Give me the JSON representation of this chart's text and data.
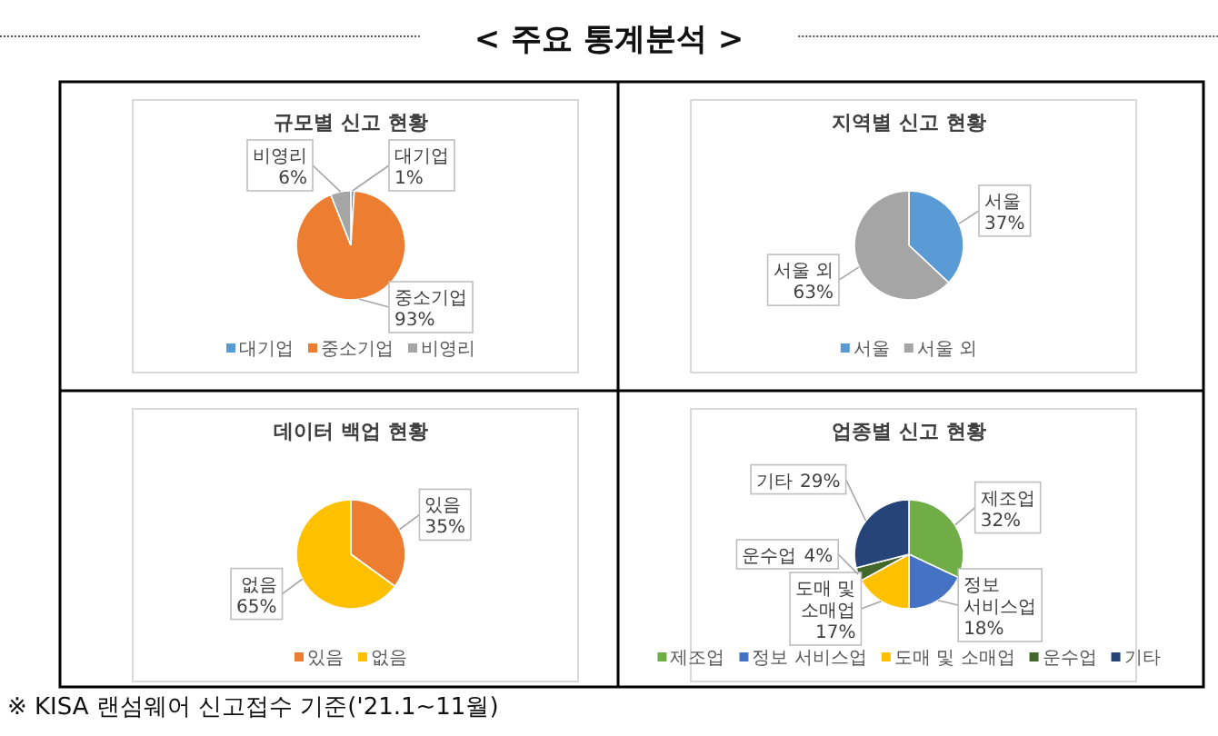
{
  "chart_data": [
    {
      "type": "other",
      "title": "< 주요 통계분석 >",
      "annotations": [
        "※ KISA 랜섬웨어 신고접수 기준('21.1~11월)"
      ]
    },
    {
      "type": "pie",
      "title": "규모별 신고 현황",
      "categories": [
        "대기업",
        "중소기업",
        "비영리"
      ],
      "values": [
        1,
        93,
        6
      ],
      "value_labels": [
        "1%",
        "93%",
        "6%"
      ],
      "colors": [
        "#5b9bd5",
        "#ed7d31",
        "#a5a5a5"
      ],
      "legend": "bottom"
    },
    {
      "type": "pie",
      "title": "지역별 신고 현황",
      "categories": [
        "서울",
        "서울 외"
      ],
      "values": [
        37,
        63
      ],
      "value_labels": [
        "37%",
        "63%"
      ],
      "colors": [
        "#5b9bd5",
        "#a5a5a5"
      ],
      "legend": "bottom"
    },
    {
      "type": "pie",
      "title": "데이터 백업 현황",
      "categories": [
        "있음",
        "없음"
      ],
      "values": [
        35,
        65
      ],
      "value_labels": [
        "35%",
        "65%"
      ],
      "colors": [
        "#ed7d31",
        "#ffc000"
      ],
      "legend": "bottom"
    },
    {
      "type": "pie",
      "title": "업종별 신고 현황",
      "categories": [
        "제조업",
        "정보 서비스업",
        "도매 및 소매업",
        "운수업",
        "기타"
      ],
      "values": [
        32,
        18,
        17,
        4,
        29
      ],
      "value_labels": [
        "32%",
        "18%",
        "17%",
        "4%",
        "29%"
      ],
      "colors": [
        "#70ad47",
        "#4472c4",
        "#ffc000",
        "#43682b",
        "#264478"
      ],
      "legend": "bottom"
    }
  ]
}
